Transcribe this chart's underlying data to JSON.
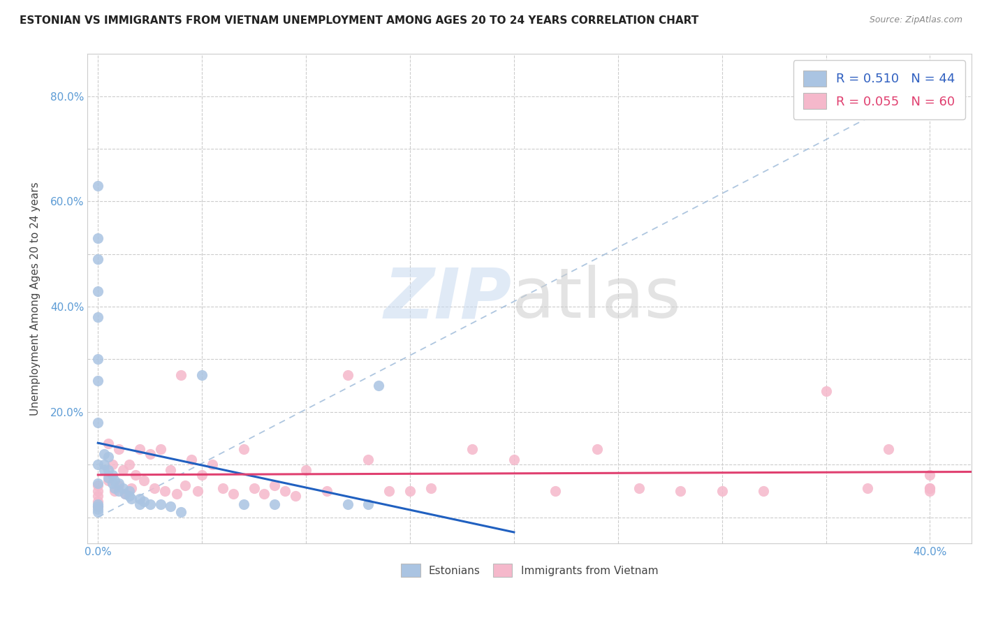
{
  "title": "ESTONIAN VS IMMIGRANTS FROM VIETNAM UNEMPLOYMENT AMONG AGES 20 TO 24 YEARS CORRELATION CHART",
  "source": "Source: ZipAtlas.com",
  "ylabel": "Unemployment Among Ages 20 to 24 years",
  "xlim": [
    -0.005,
    0.42
  ],
  "ylim": [
    -0.05,
    0.88
  ],
  "xtick_positions": [
    0.0,
    0.05,
    0.1,
    0.15,
    0.2,
    0.25,
    0.3,
    0.35,
    0.4
  ],
  "xtick_labels": [
    "0.0%",
    "",
    "",
    "",
    "",
    "",
    "",
    "",
    "40.0%"
  ],
  "ytick_positions": [
    0.0,
    0.1,
    0.2,
    0.3,
    0.4,
    0.5,
    0.6,
    0.7,
    0.8
  ],
  "ytick_labels": [
    "",
    "",
    "20.0%",
    "",
    "40.0%",
    "",
    "60.0%",
    "",
    "80.0%"
  ],
  "estonian_R": 0.51,
  "estonian_N": 44,
  "vietnam_R": 0.055,
  "vietnam_N": 60,
  "estonian_color": "#aac4e2",
  "vietnam_color": "#f5b8cb",
  "estonian_line_color": "#2060c0",
  "vietnam_line_color": "#e04070",
  "estonian_x": [
    0.0,
    0.0,
    0.0,
    0.0,
    0.0,
    0.0,
    0.0,
    0.0,
    0.0,
    0.0,
    0.003,
    0.003,
    0.003,
    0.005,
    0.005,
    0.005,
    0.007,
    0.007,
    0.008,
    0.008,
    0.01,
    0.01,
    0.012,
    0.013,
    0.015,
    0.015,
    0.016,
    0.02,
    0.02,
    0.022,
    0.025,
    0.03,
    0.035,
    0.04,
    0.05,
    0.07,
    0.085,
    0.12,
    0.13,
    0.135,
    0.0,
    0.0,
    0.0,
    0.0
  ],
  "estonian_y": [
    0.63,
    0.53,
    0.49,
    0.43,
    0.38,
    0.3,
    0.26,
    0.18,
    0.1,
    0.065,
    0.12,
    0.1,
    0.09,
    0.115,
    0.09,
    0.075,
    0.08,
    0.065,
    0.07,
    0.055,
    0.065,
    0.05,
    0.055,
    0.045,
    0.05,
    0.04,
    0.035,
    0.035,
    0.025,
    0.03,
    0.025,
    0.025,
    0.02,
    0.01,
    0.27,
    0.025,
    0.025,
    0.025,
    0.025,
    0.25,
    0.025,
    0.02,
    0.015,
    0.01
  ],
  "vietnam_x": [
    0.0,
    0.0,
    0.0,
    0.0,
    0.0,
    0.005,
    0.005,
    0.007,
    0.008,
    0.01,
    0.01,
    0.012,
    0.013,
    0.015,
    0.016,
    0.018,
    0.02,
    0.022,
    0.025,
    0.027,
    0.03,
    0.032,
    0.035,
    0.038,
    0.04,
    0.042,
    0.045,
    0.048,
    0.05,
    0.055,
    0.06,
    0.065,
    0.07,
    0.075,
    0.08,
    0.085,
    0.09,
    0.095,
    0.1,
    0.11,
    0.12,
    0.13,
    0.14,
    0.15,
    0.16,
    0.18,
    0.2,
    0.22,
    0.24,
    0.26,
    0.28,
    0.3,
    0.32,
    0.35,
    0.37,
    0.38,
    0.4,
    0.4,
    0.4,
    0.4
  ],
  "vietnam_y": [
    0.06,
    0.05,
    0.04,
    0.03,
    0.02,
    0.14,
    0.07,
    0.1,
    0.05,
    0.13,
    0.06,
    0.09,
    0.045,
    0.1,
    0.055,
    0.08,
    0.13,
    0.07,
    0.12,
    0.055,
    0.13,
    0.05,
    0.09,
    0.045,
    0.27,
    0.06,
    0.11,
    0.05,
    0.08,
    0.1,
    0.055,
    0.045,
    0.13,
    0.055,
    0.045,
    0.06,
    0.05,
    0.04,
    0.09,
    0.05,
    0.27,
    0.11,
    0.05,
    0.05,
    0.055,
    0.13,
    0.11,
    0.05,
    0.13,
    0.055,
    0.05,
    0.05,
    0.05,
    0.24,
    0.055,
    0.13,
    0.055,
    0.05,
    0.08,
    0.055
  ],
  "diag_line_x": [
    0.0,
    0.4
  ],
  "diag_line_y": [
    0.0,
    0.82
  ],
  "watermark_zip": "ZIP",
  "watermark_atlas": "atlas"
}
